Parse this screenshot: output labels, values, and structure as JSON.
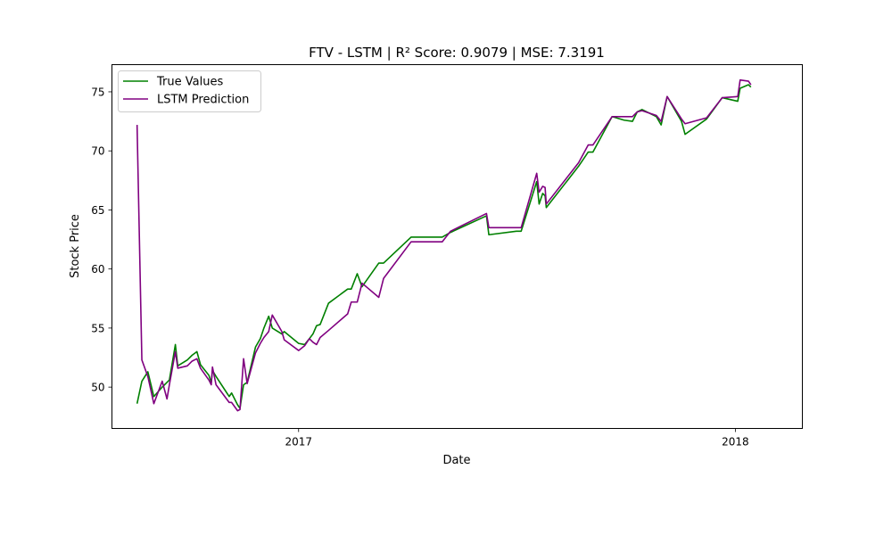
{
  "chart_data": {
    "type": "line",
    "title": "FTV - LSTM | R² Score: 0.9079 | MSE: 7.3191",
    "xlabel": "Date",
    "ylabel": "Stock Price",
    "ylim": [
      46.5,
      77.3
    ],
    "xlim": [
      "2016-07-29",
      "2018-02-26"
    ],
    "y_ticks": [
      50,
      55,
      60,
      65,
      70,
      75
    ],
    "x_ticks": [
      {
        "date": "2017-01-01",
        "label": "2017"
      },
      {
        "date": "2018-01-01",
        "label": "2018"
      }
    ],
    "grid": false,
    "legend_position": "top-left",
    "colors": {
      "true": "#008000",
      "pred": "#800080"
    },
    "series": [
      {
        "name": "True Values",
        "color": "#008000",
        "points": [
          [
            "2016-08-19",
            48.6
          ],
          [
            "2016-08-23",
            50.5
          ],
          [
            "2016-08-28",
            51.3
          ],
          [
            "2016-09-02",
            49.2
          ],
          [
            "2016-09-09",
            50.0
          ],
          [
            "2016-09-13",
            50.4
          ],
          [
            "2016-09-15",
            50.6
          ],
          [
            "2016-09-20",
            53.6
          ],
          [
            "2016-09-22",
            51.8
          ],
          [
            "2016-09-30",
            52.3
          ],
          [
            "2016-10-04",
            52.7
          ],
          [
            "2016-10-08",
            53.0
          ],
          [
            "2016-10-11",
            51.9
          ],
          [
            "2016-10-18",
            51.0
          ],
          [
            "2016-10-20",
            50.4
          ],
          [
            "2016-10-21",
            51.4
          ],
          [
            "2016-10-24",
            50.9
          ],
          [
            "2016-11-04",
            49.2
          ],
          [
            "2016-11-06",
            49.5
          ],
          [
            "2016-11-11",
            48.5
          ],
          [
            "2016-11-13",
            48.2
          ],
          [
            "2016-11-16",
            50.2
          ],
          [
            "2016-11-19",
            50.4
          ],
          [
            "2016-11-26",
            53.4
          ],
          [
            "2016-11-30",
            54.1
          ],
          [
            "2016-12-03",
            55.0
          ],
          [
            "2016-12-07",
            56.0
          ],
          [
            "2016-12-10",
            55.0
          ],
          [
            "2016-12-18",
            54.5
          ],
          [
            "2016-12-20",
            54.7
          ],
          [
            "2017-01-01",
            53.7
          ],
          [
            "2017-01-06",
            53.6
          ],
          [
            "2017-01-10",
            54.1
          ],
          [
            "2017-01-13",
            54.5
          ],
          [
            "2017-01-16",
            55.2
          ],
          [
            "2017-01-19",
            55.3
          ],
          [
            "2017-01-26",
            57.1
          ],
          [
            "2017-02-11",
            58.3
          ],
          [
            "2017-02-14",
            58.3
          ],
          [
            "2017-02-19",
            59.6
          ],
          [
            "2017-02-23",
            58.5
          ],
          [
            "2017-03-09",
            60.5
          ],
          [
            "2017-03-13",
            60.5
          ],
          [
            "2017-04-05",
            62.7
          ],
          [
            "2017-04-20",
            62.7
          ],
          [
            "2017-05-01",
            62.7
          ],
          [
            "2017-05-08",
            63.1
          ],
          [
            "2017-06-07",
            64.5
          ],
          [
            "2017-06-09",
            62.9
          ],
          [
            "2017-07-02",
            63.2
          ],
          [
            "2017-07-06",
            63.2
          ],
          [
            "2017-07-19",
            67.4
          ],
          [
            "2017-07-21",
            65.5
          ],
          [
            "2017-07-24",
            66.4
          ],
          [
            "2017-07-26",
            66.2
          ],
          [
            "2017-07-27",
            65.2
          ],
          [
            "2017-08-23",
            68.7
          ],
          [
            "2017-08-31",
            69.9
          ],
          [
            "2017-09-04",
            69.9
          ],
          [
            "2017-09-20",
            72.9
          ],
          [
            "2017-09-30",
            72.6
          ],
          [
            "2017-10-07",
            72.5
          ],
          [
            "2017-10-11",
            73.3
          ],
          [
            "2017-10-15",
            73.5
          ],
          [
            "2017-10-27",
            72.9
          ],
          [
            "2017-10-31",
            72.2
          ],
          [
            "2017-11-05",
            74.6
          ],
          [
            "2017-11-17",
            72.5
          ],
          [
            "2017-11-20",
            71.4
          ],
          [
            "2017-12-08",
            72.7
          ],
          [
            "2017-12-21",
            74.5
          ],
          [
            "2018-01-03",
            74.2
          ],
          [
            "2018-01-05",
            75.3
          ],
          [
            "2018-01-12",
            75.6
          ],
          [
            "2018-01-14",
            75.4
          ]
        ]
      },
      {
        "name": "LSTM Prediction",
        "color": "#800080",
        "points": [
          [
            "2016-08-19",
            72.2
          ],
          [
            "2016-08-23",
            52.3
          ],
          [
            "2016-08-28",
            50.9
          ],
          [
            "2016-09-02",
            48.6
          ],
          [
            "2016-09-09",
            50.5
          ],
          [
            "2016-09-13",
            49.0
          ],
          [
            "2016-09-15",
            50.2
          ],
          [
            "2016-09-20",
            53.0
          ],
          [
            "2016-09-22",
            51.6
          ],
          [
            "2016-09-30",
            51.8
          ],
          [
            "2016-10-04",
            52.2
          ],
          [
            "2016-10-08",
            52.4
          ],
          [
            "2016-10-11",
            51.6
          ],
          [
            "2016-10-18",
            50.6
          ],
          [
            "2016-10-20",
            50.2
          ],
          [
            "2016-10-21",
            51.7
          ],
          [
            "2016-10-24",
            50.2
          ],
          [
            "2016-11-04",
            48.7
          ],
          [
            "2016-11-06",
            48.7
          ],
          [
            "2016-11-11",
            48.0
          ],
          [
            "2016-11-13",
            48.1
          ],
          [
            "2016-11-16",
            52.4
          ],
          [
            "2016-11-19",
            50.3
          ],
          [
            "2016-11-26",
            52.9
          ],
          [
            "2016-11-30",
            53.7
          ],
          [
            "2016-12-03",
            54.2
          ],
          [
            "2016-12-07",
            54.7
          ],
          [
            "2016-12-10",
            56.1
          ],
          [
            "2016-12-18",
            54.7
          ],
          [
            "2016-12-20",
            54.0
          ],
          [
            "2017-01-01",
            53.1
          ],
          [
            "2017-01-06",
            53.5
          ],
          [
            "2017-01-10",
            54.1
          ],
          [
            "2017-01-13",
            53.8
          ],
          [
            "2017-01-16",
            53.6
          ],
          [
            "2017-01-19",
            54.2
          ],
          [
            "2017-01-26",
            54.8
          ],
          [
            "2017-02-11",
            56.2
          ],
          [
            "2017-02-14",
            57.2
          ],
          [
            "2017-02-19",
            57.2
          ],
          [
            "2017-02-23",
            58.8
          ],
          [
            "2017-03-09",
            57.6
          ],
          [
            "2017-03-13",
            59.2
          ],
          [
            "2017-04-05",
            62.3
          ],
          [
            "2017-04-20",
            62.3
          ],
          [
            "2017-05-01",
            62.3
          ],
          [
            "2017-05-08",
            63.2
          ],
          [
            "2017-06-07",
            64.7
          ],
          [
            "2017-06-09",
            63.5
          ],
          [
            "2017-07-02",
            63.5
          ],
          [
            "2017-07-06",
            63.5
          ],
          [
            "2017-07-19",
            68.1
          ],
          [
            "2017-07-21",
            66.5
          ],
          [
            "2017-07-24",
            67.0
          ],
          [
            "2017-07-26",
            66.9
          ],
          [
            "2017-07-27",
            65.5
          ],
          [
            "2017-08-23",
            69.0
          ],
          [
            "2017-08-31",
            70.5
          ],
          [
            "2017-09-04",
            70.5
          ],
          [
            "2017-09-20",
            72.9
          ],
          [
            "2017-09-30",
            72.9
          ],
          [
            "2017-10-07",
            72.9
          ],
          [
            "2017-10-11",
            73.3
          ],
          [
            "2017-10-15",
            73.4
          ],
          [
            "2017-10-27",
            73.0
          ],
          [
            "2017-10-31",
            72.5
          ],
          [
            "2017-11-05",
            74.6
          ],
          [
            "2017-11-17",
            72.7
          ],
          [
            "2017-11-20",
            72.3
          ],
          [
            "2017-12-08",
            72.8
          ],
          [
            "2017-12-21",
            74.5
          ],
          [
            "2018-01-03",
            74.6
          ],
          [
            "2018-01-05",
            76.0
          ],
          [
            "2018-01-12",
            75.9
          ],
          [
            "2018-01-14",
            75.6
          ]
        ]
      }
    ]
  }
}
